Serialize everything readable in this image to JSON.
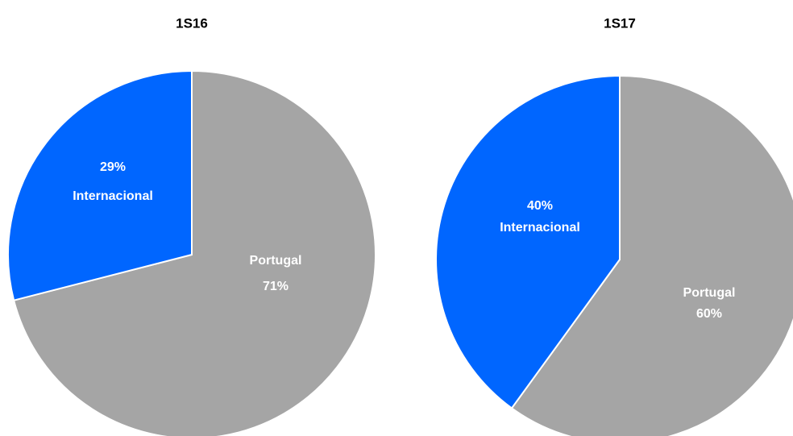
{
  "chart_data": [
    {
      "type": "pie",
      "title": "1S16",
      "categories": [
        "Portugal",
        "Internacional"
      ],
      "values": [
        71,
        29
      ],
      "value_labels": [
        "71%",
        "29%"
      ],
      "colors": [
        "#a5a5a5",
        "#0066ff"
      ]
    },
    {
      "type": "pie",
      "title": "1S17",
      "categories": [
        "Portugal",
        "Internacional"
      ],
      "values": [
        60,
        40
      ],
      "value_labels": [
        "60%",
        "40%"
      ],
      "colors": [
        "#a5a5a5",
        "#0066ff"
      ]
    }
  ]
}
